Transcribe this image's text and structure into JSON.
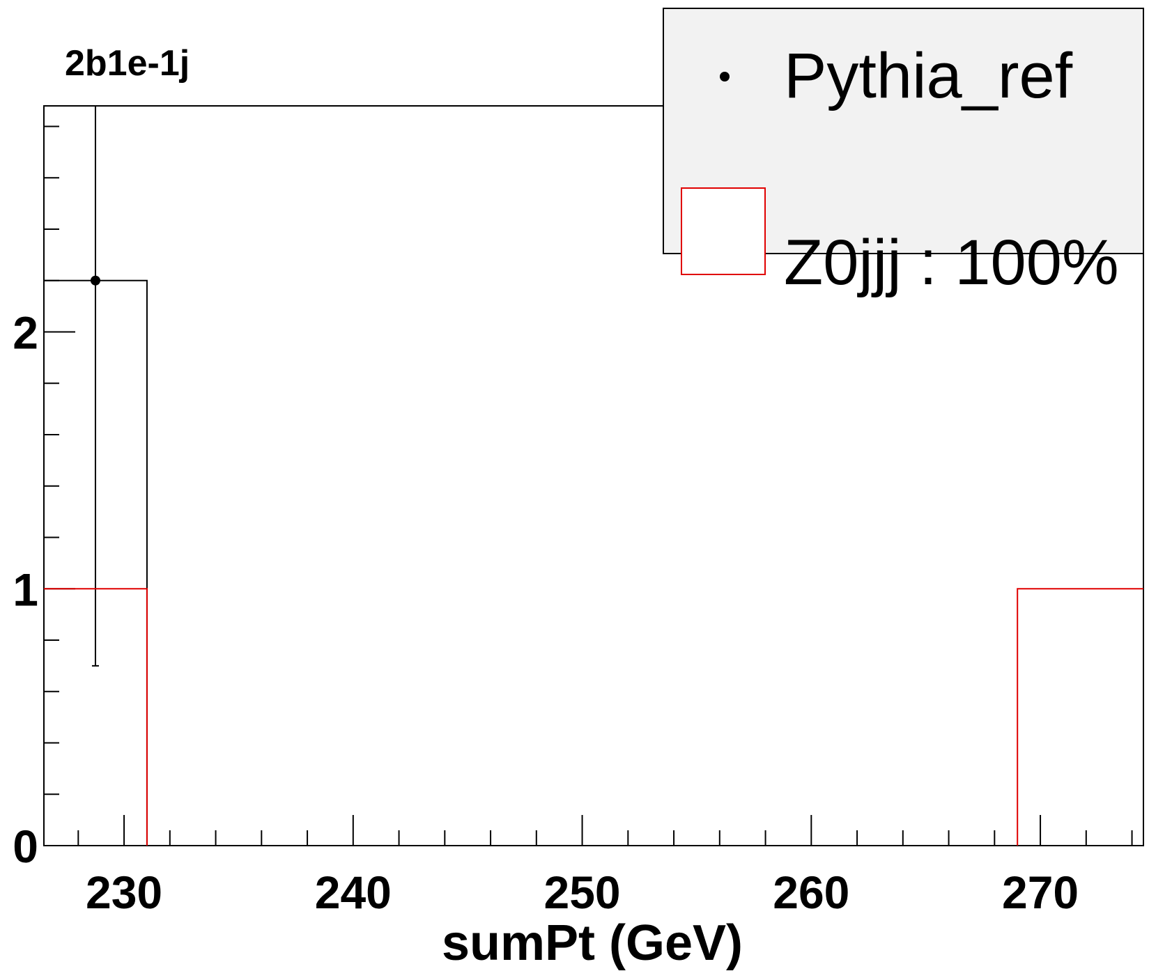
{
  "chart_data": {
    "type": "histogram",
    "title": "2b1e-1j",
    "xlabel": "sumPt (GeV)",
    "ylabel": "",
    "xlim": [
      226.5,
      274.5
    ],
    "ylim": [
      0,
      2.88
    ],
    "x_ticks": [
      230,
      240,
      250,
      260,
      270
    ],
    "y_ticks": [
      0,
      1,
      2
    ],
    "series": [
      {
        "name": "Pythia_ref",
        "kind": "points-with-errors",
        "color": "#000000",
        "bins": [
          {
            "x": 228.75,
            "y": 2.2,
            "err_low": 1.5,
            "err_high": 0.68
          }
        ],
        "outline_bins": [
          {
            "x_low": 226.5,
            "x_high": 231.0,
            "y": 2.2
          }
        ]
      },
      {
        "name": "Z0jjj : 100%",
        "kind": "step-histogram",
        "color": "#e00000",
        "bins": [
          {
            "x_low": 226.5,
            "x_high": 231.0,
            "y": 1.0
          },
          {
            "x_low": 269.0,
            "x_high": 274.5,
            "y": 1.0
          }
        ]
      }
    ],
    "legend": {
      "position": "top-right",
      "entries": [
        {
          "label": "Pythia_ref",
          "symbol": "marker"
        },
        {
          "label": "Z0jjj : 100%",
          "symbol": "box",
          "color": "#e00000"
        }
      ]
    }
  }
}
